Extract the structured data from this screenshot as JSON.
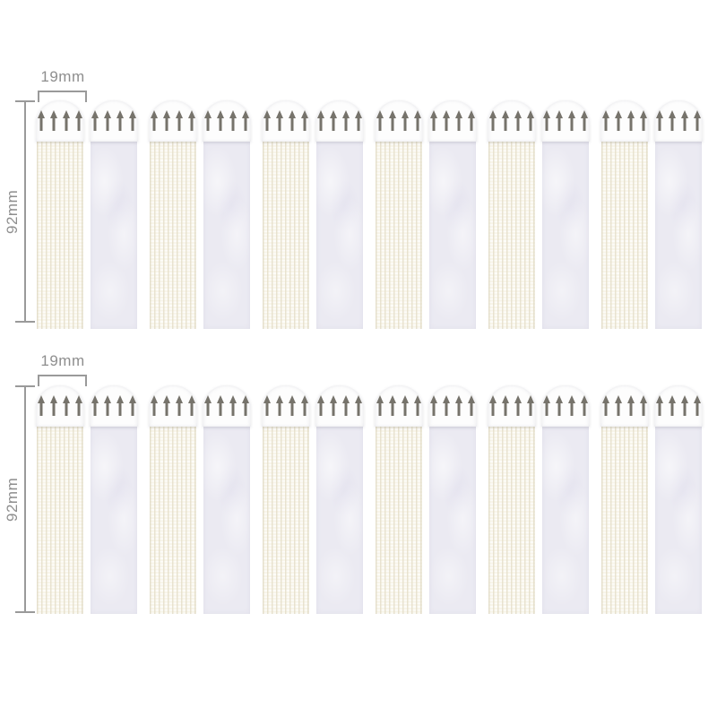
{
  "image_type": "product-photo",
  "annotations": {
    "width_label": "19mm",
    "height_label": "92mm"
  },
  "rows": [
    {
      "width_label": "19mm",
      "height_label": "92mm",
      "pairs": 6,
      "arrows_per_strip": 4,
      "pair_composition": [
        "hook",
        "loop"
      ]
    },
    {
      "width_label": "19mm",
      "height_label": "92mm",
      "pairs": 6,
      "arrows_per_strip": 4,
      "pair_composition": [
        "hook",
        "loop"
      ]
    }
  ],
  "colors": {
    "bg": "#ffffff",
    "cap": "#fdfdfd",
    "arrow": "#76736b",
    "hook_base": "#fbf9f1",
    "hook_stripe": "#e9e4d2",
    "loop_base": "#ebeaf2",
    "dim_line": "#9a9a9a",
    "dim_text": "#8e8e8e"
  }
}
